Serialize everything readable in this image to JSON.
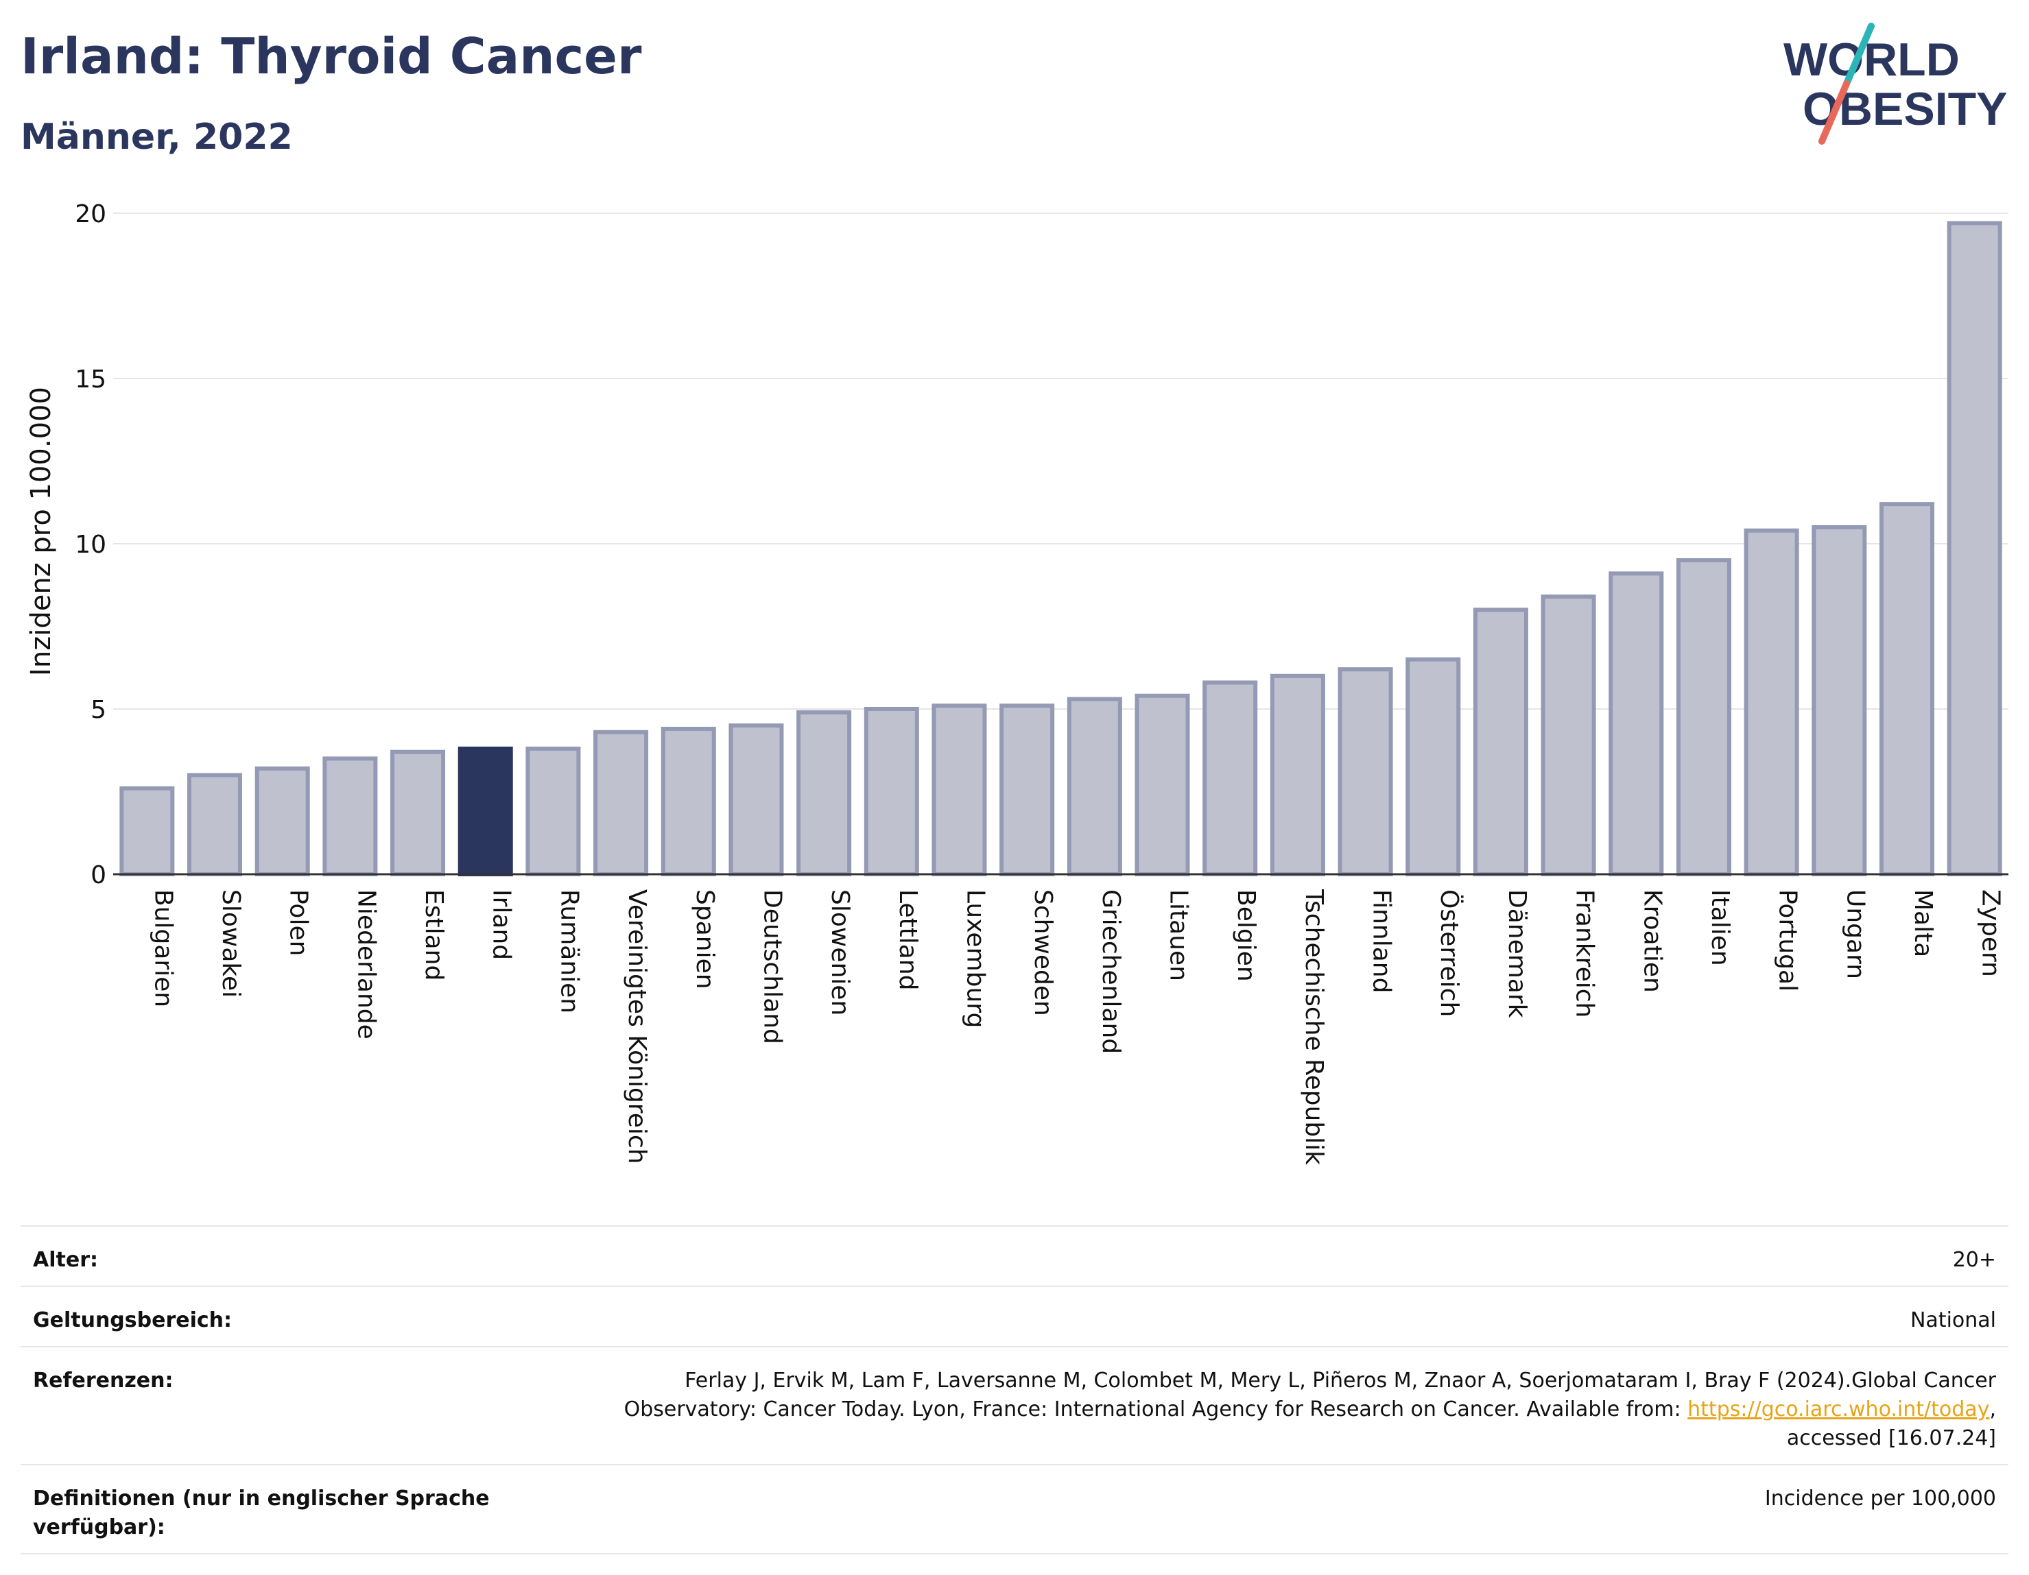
{
  "title": "Irland: Thyroid Cancer",
  "subtitle": "Männer, 2022",
  "logo": {
    "line1": "WORLD",
    "line2": "OBESITY"
  },
  "colors": {
    "highlight": "#2b365f",
    "bar_fill": "#bfc2ce",
    "bar_stroke": "#9499b4",
    "title": "#2b365f",
    "link": "#e8a317",
    "logo_teal": "#2bb5b8",
    "logo_coral": "#e8685a"
  },
  "chart_data": {
    "type": "bar",
    "ylabel": "Inzidenz pro 100.000",
    "xlabel": "",
    "ylim": [
      0,
      20
    ],
    "yticks": [
      0,
      5,
      10,
      15,
      20
    ],
    "grid": true,
    "highlight": "Irland",
    "categories": [
      "Bulgarien",
      "Slowakei",
      "Polen",
      "Niederlande",
      "Estland",
      "Irland",
      "Rumänien",
      "Vereinigtes Königreich",
      "Spanien",
      "Deutschland",
      "Slowenien",
      "Lettland",
      "Luxemburg",
      "Schweden",
      "Griechenland",
      "Litauen",
      "Belgien",
      "Tschechische Republik",
      "Finnland",
      "Österreich",
      "Dänemark",
      "Frankreich",
      "Kroatien",
      "Italien",
      "Portugal",
      "Ungarn",
      "Malta",
      "Zypern"
    ],
    "values": [
      2.6,
      3.0,
      3.2,
      3.5,
      3.7,
      3.8,
      3.8,
      4.3,
      4.4,
      4.5,
      4.9,
      5.0,
      5.1,
      5.1,
      5.3,
      5.4,
      5.8,
      6.0,
      6.2,
      6.5,
      8.0,
      8.4,
      9.1,
      9.5,
      10.4,
      10.5,
      11.2,
      19.7
    ]
  },
  "meta": {
    "age_label": "Alter:",
    "age_value": "20+",
    "scope_label": "Geltungsbereich:",
    "scope_value": "National",
    "ref_label": "Referenzen:",
    "ref_text_1": "Ferlay J, Ervik M, Lam F, Laversanne M, Colombet M, Mery L, Piñeros M, Znaor A, Soerjomataram I, Bray F (2024).Global Cancer",
    "ref_text_2": "Observatory: Cancer Today. Lyon, France: International Agency for Research on Cancer. Available from: ",
    "ref_link": "https://gco.iarc.who.int/today",
    "ref_text_3": ",",
    "ref_text_4": "accessed [16.07.24]",
    "def_label": "Definitionen (nur in englischer Sprache verfügbar):",
    "def_value": "Incidence per 100,000"
  }
}
